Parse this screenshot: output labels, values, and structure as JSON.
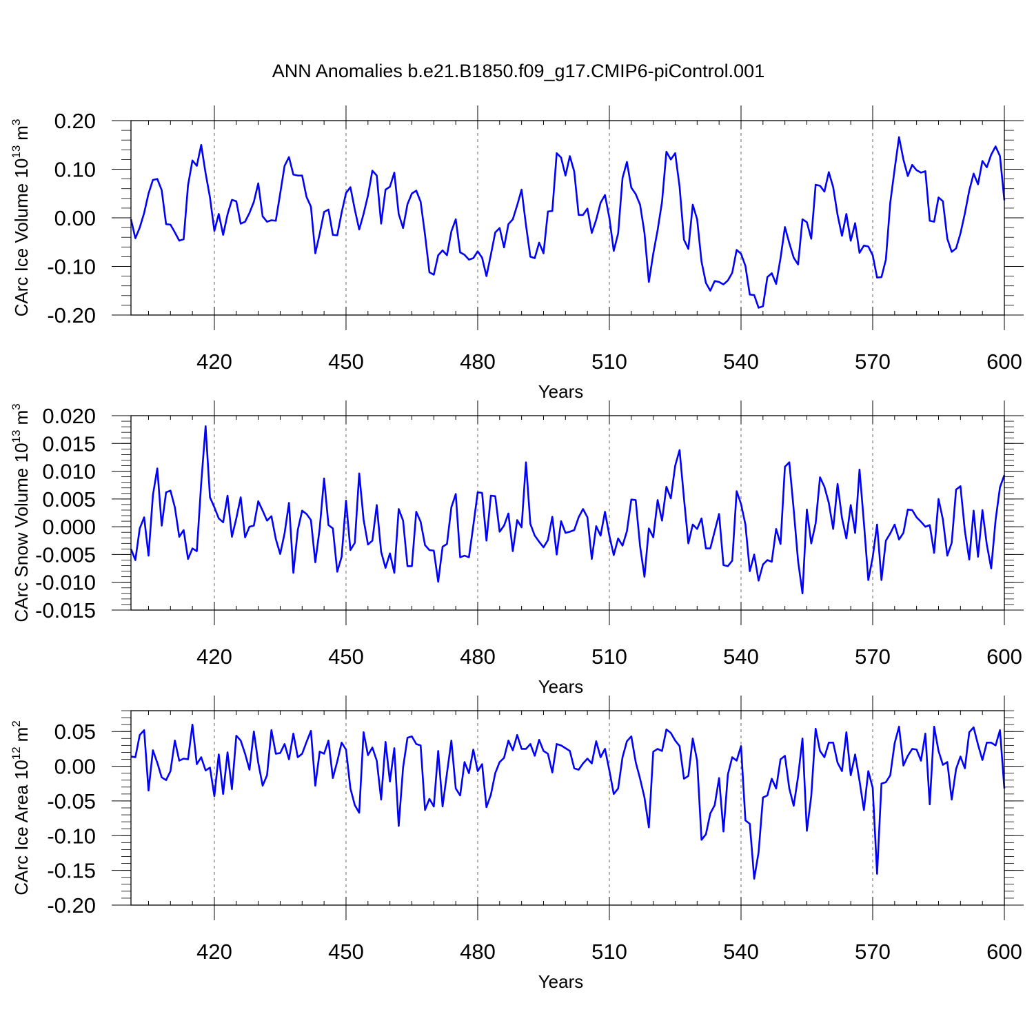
{
  "title": "ANN Anomalies b.e21.B1850.f09_g17.CMIP6-piControl.001",
  "line_color": "#0000ff",
  "chart_data": [
    {
      "type": "line",
      "title": "ANN Anomalies b.e21.B1850.f09_g17.CMIP6-piControl.001",
      "xlabel": "Years",
      "ylabel": "CArc Ice Volume 10",
      "ylabel_sup": "13",
      "ylabel_unit": "m",
      "ylabel_unit_sup": "3",
      "xlim": [
        401,
        600
      ],
      "ylim": [
        -0.2,
        0.2
      ],
      "xticks": [
        420,
        450,
        480,
        510,
        540,
        570,
        600
      ],
      "yticks": [
        -0.2,
        -0.1,
        0.0,
        0.1,
        0.2
      ],
      "ytick_labels": [
        "-0.20",
        "-0.10",
        "0.00",
        "0.10",
        "0.20"
      ],
      "grid": "dashed vertical lines at x ticks",
      "x_start": 401,
      "x_step": 1,
      "values": [
        -0.003,
        -0.042,
        -0.02,
        0.01,
        0.05,
        0.078,
        0.08,
        0.057,
        -0.013,
        -0.014,
        -0.03,
        -0.047,
        -0.044,
        0.067,
        0.118,
        0.107,
        0.15,
        0.092,
        0.042,
        -0.027,
        0.008,
        -0.035,
        0.007,
        0.037,
        0.034,
        -0.012,
        -0.008,
        0.01,
        0.033,
        0.071,
        0.003,
        -0.008,
        -0.005,
        -0.006,
        0.05,
        0.107,
        0.125,
        0.089,
        0.087,
        0.087,
        0.043,
        0.023,
        -0.073,
        -0.033,
        0.012,
        0.017,
        -0.035,
        -0.036,
        0.011,
        0.051,
        0.063,
        0.017,
        -0.024,
        0.008,
        0.046,
        0.097,
        0.087,
        -0.012,
        0.058,
        0.064,
        0.093,
        0.008,
        -0.021,
        0.028,
        0.05,
        0.056,
        0.033,
        -0.035,
        -0.112,
        -0.117,
        -0.077,
        -0.067,
        -0.077,
        -0.028,
        -0.003,
        -0.071,
        -0.076,
        -0.086,
        -0.083,
        -0.069,
        -0.082,
        -0.12,
        -0.076,
        -0.03,
        -0.021,
        -0.061,
        -0.013,
        -0.003,
        0.026,
        0.058,
        -0.015,
        -0.08,
        -0.083,
        -0.051,
        -0.073,
        0.013,
        0.014,
        0.133,
        0.124,
        0.087,
        0.127,
        0.095,
        0.006,
        0.006,
        0.019,
        -0.031,
        -0.004,
        0.031,
        0.047,
        0.0,
        -0.068,
        -0.032,
        0.082,
        0.115,
        0.062,
        0.049,
        0.027,
        -0.031,
        -0.132,
        -0.074,
        -0.025,
        0.033,
        0.136,
        0.12,
        0.133,
        0.064,
        -0.045,
        -0.064,
        0.027,
        -0.003,
        -0.09,
        -0.134,
        -0.15,
        -0.13,
        -0.132,
        -0.137,
        -0.129,
        -0.113,
        -0.066,
        -0.074,
        -0.099,
        -0.158,
        -0.159,
        -0.185,
        -0.182,
        -0.122,
        -0.114,
        -0.136,
        -0.083,
        -0.019,
        -0.052,
        -0.082,
        -0.096,
        -0.003,
        -0.009,
        -0.043,
        0.068,
        0.066,
        0.054,
        0.094,
        0.063,
        0.006,
        -0.037,
        0.008,
        -0.047,
        -0.011,
        -0.072,
        -0.057,
        -0.059,
        -0.077,
        -0.123,
        -0.122,
        -0.086,
        0.031,
        0.1,
        0.166,
        0.12,
        0.086,
        0.109,
        0.098,
        0.093,
        0.096,
        -0.006,
        -0.008,
        0.042,
        0.034,
        -0.043,
        -0.07,
        -0.063,
        -0.032,
        0.009,
        0.056,
        0.091,
        0.069,
        0.117,
        0.104,
        0.13,
        0.147,
        0.127,
        0.036
      ]
    },
    {
      "type": "line",
      "title": "",
      "xlabel": "Years",
      "ylabel": "CArc Snow Volume 10",
      "ylabel_sup": "13",
      "ylabel_unit": "m",
      "ylabel_unit_sup": "3",
      "xlim": [
        401,
        600
      ],
      "ylim": [
        -0.015,
        0.02
      ],
      "xticks": [
        420,
        450,
        480,
        510,
        540,
        570,
        600
      ],
      "yticks": [
        -0.015,
        -0.01,
        -0.005,
        0.0,
        0.005,
        0.01,
        0.015,
        0.02
      ],
      "ytick_labels": [
        "-0.015",
        "-0.010",
        "-0.005",
        "0.000",
        "0.005",
        "0.010",
        "0.015",
        "0.020"
      ],
      "grid": "dashed vertical lines at x ticks",
      "x_start": 401,
      "x_step": 1,
      "values": [
        -0.004,
        -0.006,
        -0.0003,
        0.0017,
        -0.0052,
        0.0057,
        0.0105,
        0.0002,
        0.0062,
        0.0065,
        0.0035,
        -0.0018,
        -0.0006,
        -0.0058,
        -0.0039,
        -0.0044,
        0.0078,
        0.0181,
        0.0053,
        0.0035,
        0.0015,
        0.0008,
        0.0056,
        -0.0018,
        0.0015,
        0.0053,
        -0.0019,
        0.0,
        0.0002,
        0.0046,
        0.0029,
        0.0011,
        0.0019,
        -0.0022,
        -0.0049,
        -0.0012,
        0.0043,
        -0.0083,
        -0.0006,
        0.0029,
        0.0023,
        0.0012,
        -0.0064,
        -0.0003,
        0.0087,
        0.0003,
        -0.0003,
        -0.0081,
        -0.0054,
        0.0047,
        -0.0042,
        -0.0029,
        0.0096,
        0.0013,
        -0.0032,
        -0.0025,
        0.0039,
        -0.0045,
        -0.0074,
        -0.0048,
        -0.0083,
        0.0032,
        0.0011,
        -0.0071,
        -0.0071,
        0.0027,
        0.0009,
        -0.0033,
        -0.0042,
        -0.0043,
        -0.0099,
        -0.0036,
        -0.0031,
        0.0035,
        0.0059,
        -0.0055,
        -0.0052,
        -0.0055,
        0.0002,
        0.0062,
        0.0061,
        -0.0025,
        0.0056,
        0.0055,
        -0.0009,
        0.0002,
        0.0024,
        -0.0044,
        0.0012,
        -0.0001,
        0.0116,
        0.0005,
        -0.0016,
        -0.0027,
        -0.0037,
        -0.0024,
        0.0018,
        -0.005,
        0.001,
        -0.0011,
        -0.0009,
        -0.0006,
        0.0017,
        0.0032,
        0.0017,
        -0.0058,
        0.0001,
        -0.0016,
        0.0027,
        -0.0016,
        -0.0051,
        -0.0021,
        -0.0034,
        -0.0008,
        0.0049,
        0.0048,
        -0.0035,
        -0.009,
        -0.0003,
        -0.0019,
        0.0048,
        0.0011,
        0.0072,
        0.0051,
        0.011,
        0.0138,
        0.0051,
        -0.003,
        0.0004,
        -0.0004,
        0.0015,
        -0.0039,
        -0.0039,
        -0.0008,
        0.0023,
        -0.0069,
        -0.0071,
        -0.0061,
        0.0064,
        0.0041,
        0.0004,
        -0.008,
        -0.005,
        -0.0097,
        -0.0068,
        -0.006,
        -0.0063,
        -0.0004,
        -0.0031,
        0.0108,
        0.0116,
        0.0031,
        -0.0062,
        -0.012,
        0.0031,
        -0.003,
        0.0006,
        0.0089,
        0.0072,
        0.0043,
        -0.0004,
        0.0077,
        0.0016,
        -0.0021,
        0.0039,
        -0.0011,
        0.0103,
        0.0007,
        -0.0096,
        -0.0055,
        0.0004,
        -0.0096,
        -0.0025,
        -0.0012,
        0.0004,
        -0.0023,
        -0.0011,
        0.0031,
        0.003,
        0.0017,
        0.0009,
        0.0,
        0.0003,
        -0.0047,
        0.005,
        0.0013,
        -0.0052,
        -0.0029,
        0.0067,
        0.0073,
        -0.0007,
        -0.0059,
        0.0029,
        -0.0054,
        0.003,
        -0.0032,
        -0.0075,
        0.0012,
        0.0071,
        0.0093
      ]
    },
    {
      "type": "line",
      "title": "",
      "xlabel": "Years",
      "ylabel": "CArc Ice Area 10",
      "ylabel_sup": "12",
      "ylabel_unit": "m",
      "ylabel_unit_sup": "2",
      "xlim": [
        401,
        600
      ],
      "ylim": [
        -0.2,
        0.08
      ],
      "xticks": [
        420,
        450,
        480,
        510,
        540,
        570,
        600
      ],
      "yticks": [
        -0.2,
        -0.15,
        -0.1,
        -0.05,
        0.0,
        0.05
      ],
      "ytick_labels": [
        "-0.20",
        "-0.15",
        "-0.10",
        "-0.05",
        "0.00",
        "0.05"
      ],
      "grid": "dashed vertical lines at x ticks",
      "x_start": 401,
      "x_step": 1,
      "values": [
        0.014,
        0.013,
        0.045,
        0.052,
        -0.035,
        0.023,
        0.005,
        -0.016,
        -0.02,
        -0.007,
        0.037,
        0.008,
        0.011,
        0.01,
        0.06,
        0.003,
        0.013,
        -0.006,
        -0.002,
        -0.043,
        0.017,
        -0.04,
        0.02,
        -0.033,
        0.044,
        0.037,
        0.018,
        -0.005,
        0.05,
        0.005,
        -0.028,
        -0.013,
        0.052,
        0.018,
        0.019,
        0.032,
        0.01,
        0.047,
        0.013,
        0.018,
        0.035,
        0.051,
        -0.028,
        0.021,
        0.018,
        0.037,
        -0.017,
        0.007,
        0.034,
        0.024,
        -0.032,
        -0.056,
        -0.067,
        0.049,
        0.016,
        0.027,
        0.008,
        -0.048,
        0.035,
        -0.022,
        0.026,
        -0.086,
        -0.002,
        0.041,
        0.043,
        0.032,
        0.03,
        -0.063,
        -0.047,
        -0.058,
        0.022,
        -0.058,
        -0.01,
        0.037,
        -0.032,
        -0.042,
        0.006,
        -0.01,
        0.024,
        -0.007,
        0.003,
        -0.059,
        -0.041,
        -0.01,
        0.006,
        0.012,
        0.037,
        0.023,
        0.045,
        0.025,
        0.025,
        0.032,
        0.015,
        0.038,
        0.022,
        0.018,
        -0.009,
        0.032,
        0.03,
        0.026,
        0.022,
        -0.003,
        -0.005,
        0.004,
        0.011,
        0.004,
        0.036,
        0.013,
        0.025,
        -0.006,
        -0.04,
        -0.032,
        0.013,
        0.036,
        0.043,
        0.006,
        -0.018,
        -0.045,
        -0.088,
        0.021,
        0.025,
        0.022,
        0.053,
        0.048,
        0.037,
        0.029,
        -0.018,
        -0.014,
        0.04,
        0.008,
        -0.106,
        -0.098,
        -0.068,
        -0.056,
        -0.017,
        -0.094,
        -0.012,
        0.013,
        0.008,
        0.029,
        -0.078,
        -0.083,
        -0.162,
        -0.124,
        -0.045,
        -0.042,
        -0.018,
        -0.032,
        0.01,
        0.015,
        -0.032,
        -0.057,
        -0.015,
        0.04,
        -0.093,
        -0.043,
        0.054,
        0.022,
        0.013,
        0.034,
        0.034,
        0.005,
        -0.007,
        0.049,
        -0.013,
        0.017,
        -0.021,
        -0.063,
        -0.007,
        -0.031,
        -0.155,
        -0.025,
        -0.023,
        -0.013,
        0.033,
        0.057,
        0.001,
        0.015,
        0.025,
        0.024,
        0.008,
        0.047,
        -0.055,
        0.057,
        0.022,
        0.002,
        0.006,
        -0.048,
        -0.004,
        0.014,
        -0.003,
        0.049,
        0.056,
        0.031,
        0.009,
        0.034,
        0.034,
        0.03,
        0.052,
        -0.032
      ]
    }
  ]
}
